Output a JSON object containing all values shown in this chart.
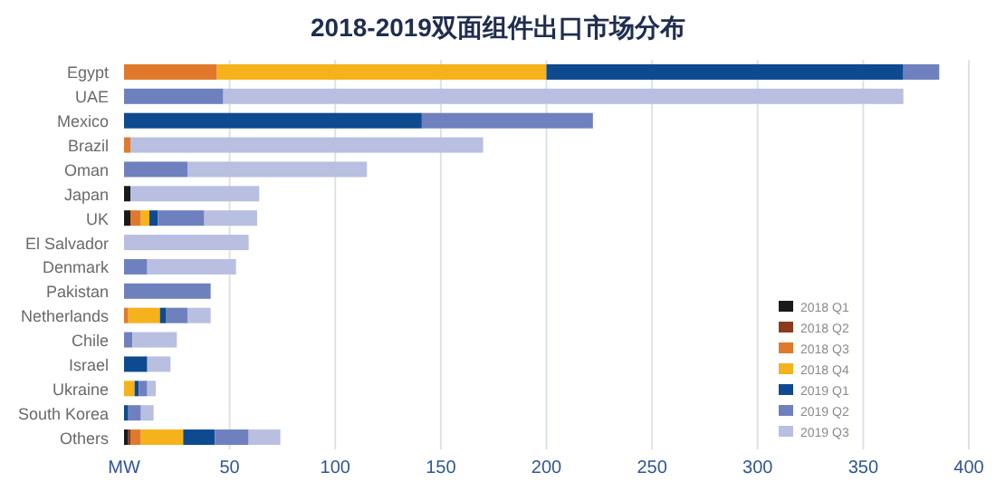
{
  "chart_data": {
    "type": "bar",
    "orientation": "horizontal",
    "stacked": true,
    "title": "2018-2019双面组件出口市场分布",
    "categories": [
      "Egypt",
      "UAE",
      "Mexico",
      "Brazil",
      "Oman",
      "Japan",
      "UK",
      "El Salvador",
      "Denmark",
      "Pakistan",
      "Netherlands",
      "Chile",
      "Israel",
      "Ukraine",
      "South Korea",
      "Others"
    ],
    "series": [
      {
        "name": "2018 Q1",
        "color": "#1a1a1a",
        "values": [
          null,
          null,
          null,
          null,
          null,
          3,
          3,
          null,
          null,
          null,
          null,
          null,
          null,
          null,
          null,
          2
        ]
      },
      {
        "name": "2018 Q2",
        "color": "#8b3a1e",
        "values": [
          null,
          null,
          null,
          null,
          null,
          null,
          null,
          null,
          null,
          null,
          null,
          null,
          null,
          null,
          null,
          1
        ]
      },
      {
        "name": "2018 Q3",
        "color": "#e07a2a",
        "values": [
          44,
          null,
          null,
          3,
          null,
          null,
          5,
          null,
          null,
          null,
          2,
          null,
          null,
          null,
          null,
          5
        ]
      },
      {
        "name": "2018 Q4",
        "color": "#f5b21b",
        "values": [
          156,
          null,
          null,
          null,
          null,
          null,
          4,
          null,
          null,
          null,
          15,
          null,
          null,
          5,
          null,
          20
        ]
      },
      {
        "name": "2019 Q1",
        "color": "#0d4a8f",
        "values": [
          169,
          null,
          141,
          null,
          null,
          null,
          4,
          null,
          null,
          null,
          3,
          null,
          11,
          2,
          2,
          15
        ]
      },
      {
        "name": "2019 Q2",
        "color": "#6f80bf",
        "values": [
          17,
          47,
          81,
          null,
          30,
          null,
          22,
          null,
          11,
          41,
          10,
          4,
          null,
          4,
          6,
          16
        ]
      },
      {
        "name": "2019 Q3",
        "color": "#b8bfe0",
        "values": [
          null,
          322,
          null,
          167,
          85,
          61,
          25,
          59,
          42,
          null,
          11,
          21,
          11,
          4,
          6,
          15
        ]
      }
    ],
    "xlim": [
      0,
      400
    ],
    "xticks": [
      {
        "value": 0,
        "label": "MW"
      },
      50,
      100,
      150,
      200,
      250,
      300,
      350,
      400
    ],
    "grid": "x",
    "legend": "bottom right"
  }
}
